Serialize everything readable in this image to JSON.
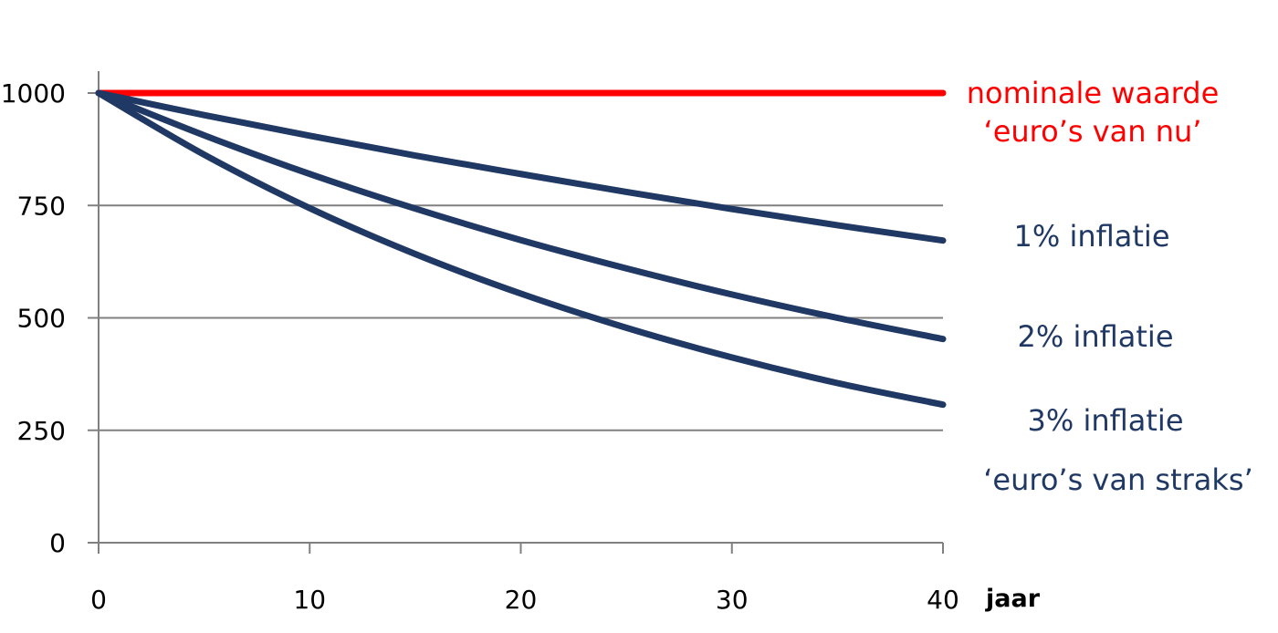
{
  "chart_data": {
    "type": "line",
    "x": [
      0,
      5,
      10,
      15,
      20,
      25,
      30,
      35,
      40
    ],
    "x_unit_label": "jaar",
    "xlim": [
      0,
      40
    ],
    "ylim": [
      0,
      1000
    ],
    "xticks": [
      "0",
      "10",
      "20",
      "30",
      "40"
    ],
    "yticks": [
      "0",
      "250",
      "500",
      "750",
      "1000"
    ],
    "grid": "horizontal",
    "series": [
      {
        "key": "nominal",
        "values": [
          1000,
          1000,
          1000,
          1000,
          1000,
          1000,
          1000,
          1000,
          1000
        ],
        "color": "#ff0000"
      },
      {
        "key": "inflation_1",
        "values": [
          1000,
          951,
          905,
          861,
          820,
          780,
          742,
          706,
          672
        ],
        "color": "#1f3864"
      },
      {
        "key": "inflation_2",
        "values": [
          1000,
          906,
          820,
          743,
          673,
          610,
          552,
          500,
          453
        ],
        "color": "#1f3864"
      },
      {
        "key": "inflation_3",
        "values": [
          1000,
          863,
          744,
          642,
          554,
          478,
          412,
          355,
          307
        ],
        "color": "#1f3864"
      }
    ],
    "annotations": [
      {
        "key": "nominal_line1",
        "text": "nominale waarde",
        "color": "#ff0000"
      },
      {
        "key": "nominal_line2",
        "text": "‘euro’s van nu’",
        "color": "#ff0000"
      },
      {
        "key": "inflation_1",
        "text": "1% inflatie",
        "color": "#1f3864"
      },
      {
        "key": "inflation_2",
        "text": "2% inflatie",
        "color": "#1f3864"
      },
      {
        "key": "inflation_3",
        "text": "3% inflatie",
        "color": "#1f3864"
      },
      {
        "key": "real_value",
        "text": "‘euro’s van straks’",
        "color": "#1f3864"
      }
    ],
    "colors": {
      "axis": "#808080",
      "grid": "#808080"
    }
  }
}
